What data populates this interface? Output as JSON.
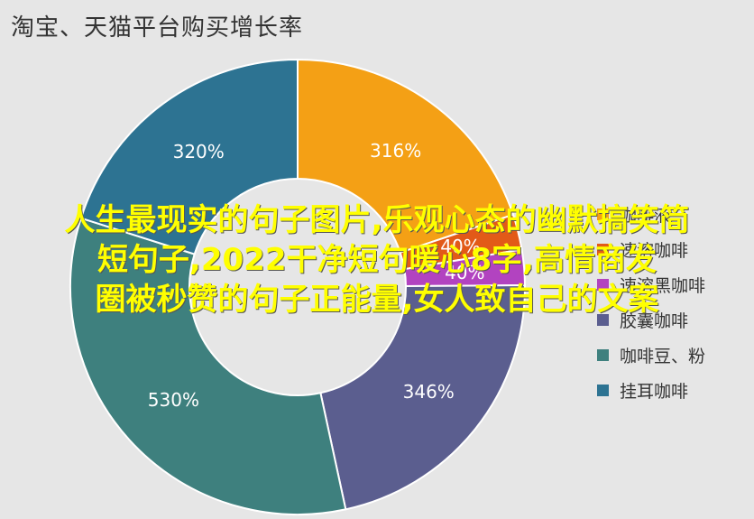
{
  "chart_data": {
    "type": "pie",
    "title": "淘宝、天猫平台购买增长率",
    "categories": [
      "咖啡液",
      "速溶咖啡",
      "速溶黑咖啡",
      "胶囊咖啡",
      "咖啡豆、粉",
      "挂耳咖啡"
    ],
    "values": [
      316,
      40,
      40,
      346,
      530,
      320
    ],
    "value_labels": [
      "316%",
      "40%",
      "40%",
      "346%",
      "530%",
      "320%"
    ],
    "colors": [
      "#f4a015",
      "#e25a18",
      "#b243c0",
      "#5b5e8f",
      "#3e807e",
      "#2d7392"
    ],
    "legend_position": "right",
    "donut": true
  },
  "overlay_text": [
    "人生最现实的句子图片,乐观心态的幽默搞笑简",
    "短句子,2022干净短句暖心8字,高情商发",
    "圈被秒赞的句子正能量,女人致自己的文案"
  ]
}
